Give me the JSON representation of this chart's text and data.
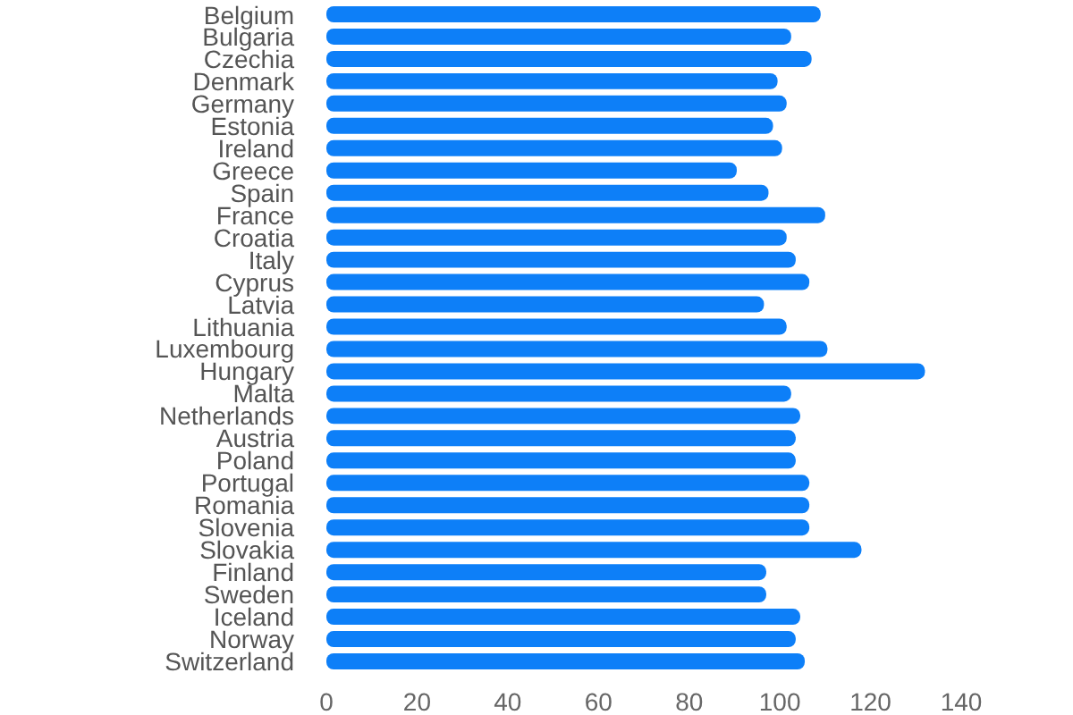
{
  "chart_data": {
    "type": "bar",
    "orientation": "horizontal",
    "categories": [
      "Belgium",
      "Bulgaria",
      "Czechia",
      "Denmark",
      "Germany",
      "Estonia",
      "Ireland",
      "Greece",
      "Spain",
      "France",
      "Croatia",
      "Italy",
      "Cyprus",
      "Latvia",
      "Lithuania",
      "Luxembourg",
      "Hungary",
      "Malta",
      "Netherlands",
      "Austria",
      "Poland",
      "Portugal",
      "Romania",
      "Slovenia",
      "Slovakia",
      "Finland",
      "Sweden",
      "Iceland",
      "Norway",
      "Switzerland"
    ],
    "values": [
      109,
      102.5,
      107,
      99.5,
      101.5,
      98.5,
      100.5,
      90.5,
      97.5,
      110,
      101.5,
      103.5,
      106.5,
      96.5,
      101.5,
      110.5,
      132,
      102.5,
      104.5,
      103.5,
      103.5,
      106.5,
      106.5,
      106.5,
      118,
      97,
      97,
      104.5,
      103.5,
      105.5
    ],
    "color": "#0d7ff8",
    "xlim": [
      0,
      140
    ],
    "xticks": [
      0,
      20,
      40,
      60,
      80,
      100,
      120,
      140
    ],
    "grid": false
  }
}
